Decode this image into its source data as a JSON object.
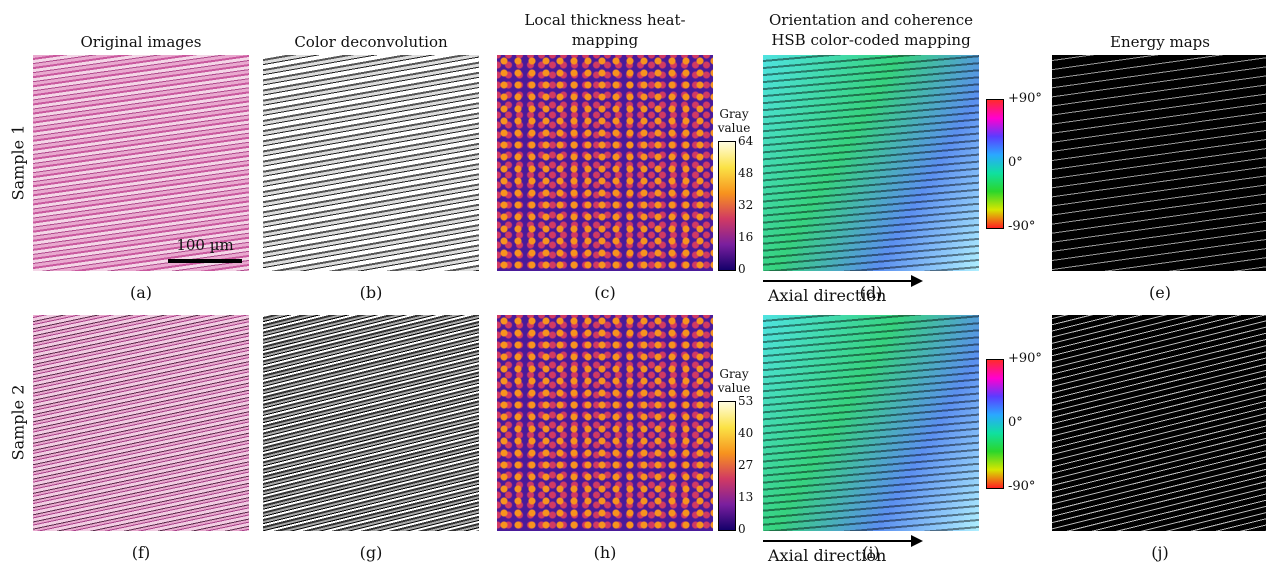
{
  "columns": [
    [
      "Original images"
    ],
    [
      "Color deconvolution"
    ],
    [
      "Local thickness heat-",
      "mapping"
    ],
    [
      "Orientation and coherence",
      "HSB color-coded mapping"
    ],
    [
      "Energy maps"
    ]
  ],
  "rows": [
    "Sample 1",
    "Sample 2"
  ],
  "panel_labels": [
    [
      "(a)",
      "(b)",
      "(c)",
      "(d)",
      "(e)"
    ],
    [
      "(f)",
      "(g)",
      "(h)",
      "(i)",
      "(j)"
    ]
  ],
  "scale_bar": "100 µm",
  "thickness_colorbars": [
    {
      "title": [
        "Gray",
        "value"
      ],
      "ticks": [
        "64",
        "48",
        "32",
        "16",
        "0"
      ]
    },
    {
      "title": [
        "Gray",
        "value"
      ],
      "ticks": [
        "53",
        "40",
        "27",
        "13",
        "0"
      ]
    }
  ],
  "orientation_colorbars": [
    {
      "ticks": [
        "+90°",
        "0°",
        "-90°"
      ]
    },
    {
      "ticks": [
        "+90°",
        "0°",
        "-90°"
      ]
    }
  ],
  "axial_labels": [
    "Axial direction",
    "Axial direction"
  ]
}
